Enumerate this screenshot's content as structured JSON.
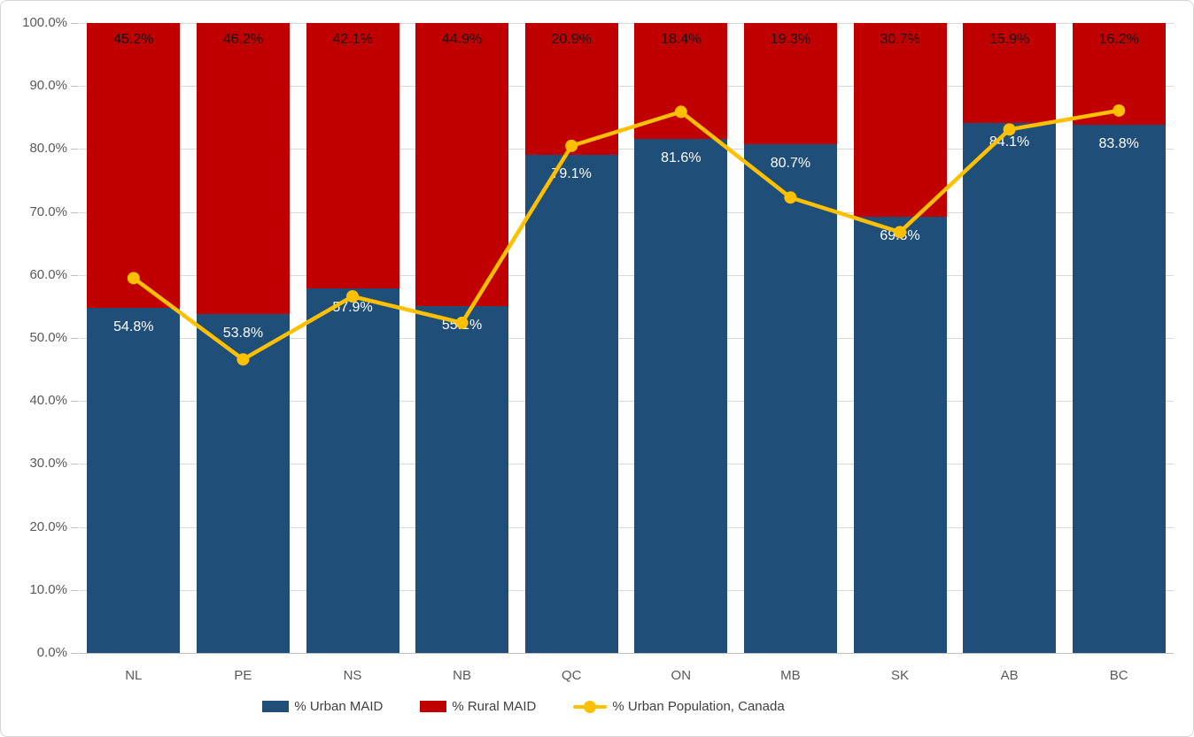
{
  "chart_data": {
    "type": "bar",
    "subtype": "100%-stacked-columns-with-line-overlay",
    "categories": [
      "NL",
      "PE",
      "NS",
      "NB",
      "QC",
      "ON",
      "MB",
      "SK",
      "AB",
      "BC"
    ],
    "series": [
      {
        "name": "% Urban MAID",
        "render": "bar-stack-bottom",
        "color": "#1f4e79",
        "values": [
          54.8,
          53.8,
          57.9,
          55.1,
          79.1,
          81.6,
          80.7,
          69.3,
          84.1,
          83.8
        ]
      },
      {
        "name": "% Rural MAID",
        "render": "bar-stack-top",
        "color": "#c00000",
        "values": [
          45.2,
          46.2,
          42.1,
          44.9,
          20.9,
          18.4,
          19.3,
          30.7,
          15.9,
          16.2
        ]
      },
      {
        "name": "% Urban Population, Canada",
        "render": "line-with-markers",
        "color": "#ffc000",
        "values": [
          59.5,
          46.6,
          56.6,
          52.4,
          80.5,
          85.9,
          72.3,
          66.8,
          83.1,
          86.1
        ]
      }
    ],
    "data_label_format": "0.0%",
    "ylim": [
      0,
      100
    ],
    "ytick_labels": [
      "100.0%",
      "90.0%",
      "80.0%",
      "70.0%",
      "60.0%",
      "50.0%",
      "40.0%",
      "30.0%",
      "20.0%",
      "10.0%",
      "0.0%"
    ],
    "grid": true,
    "legend_position": "bottom"
  },
  "colors": {
    "urban_bar": "#1f4e79",
    "rural_bar": "#c00000",
    "population_line": "#ffc000",
    "axis_text": "#595959",
    "gridline": "#d9d9d9",
    "axis_line": "#bfbfbf",
    "legend_text": "#404040",
    "urban_data_label": "#ffffff",
    "rural_data_label": "#111111",
    "background": "#ffffff",
    "chart_border": "#d6d6d6"
  }
}
